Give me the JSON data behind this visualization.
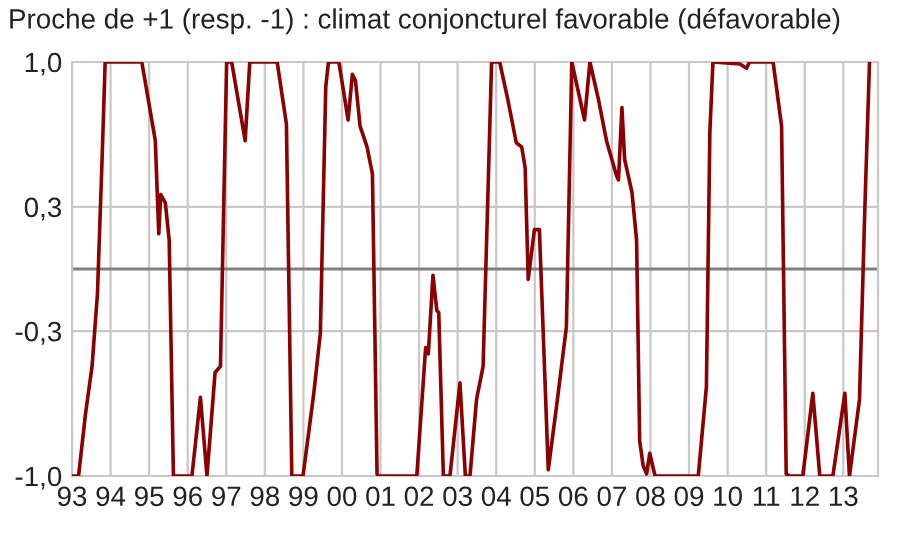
{
  "chart_data": {
    "type": "line",
    "title": "Proche de +1 (resp. -1) : climat conjoncturel favorable (défavorable)",
    "series": [
      {
        "color": "#8b0000",
        "x": [
          1993.0,
          1993.17,
          1993.35,
          1993.52,
          1993.66,
          1993.78,
          1993.86,
          1994.81,
          1995.16,
          1995.25,
          1995.3,
          1995.42,
          1995.52,
          1995.63,
          1996.11,
          1996.33,
          1996.5,
          1996.71,
          1996.85,
          1997.01,
          1997.14,
          1997.49,
          1997.61,
          1998.32,
          1998.56,
          1998.7,
          1998.99,
          1999.27,
          1999.44,
          1999.58,
          1999.65,
          1999.92,
          2000.16,
          2000.27,
          2000.35,
          2000.47,
          2000.65,
          2000.79,
          2000.91,
          2000.96,
          2001.94,
          2002.17,
          2002.24,
          2002.36,
          2002.46,
          2002.51,
          2002.63,
          2002.8,
          2003.06,
          2003.2,
          2003.32,
          2003.49,
          2003.66,
          2003.8,
          2003.88,
          2004.09,
          2004.3,
          2004.52,
          2004.66,
          2004.75,
          2004.83,
          2004.99,
          2005.12,
          2005.35,
          2005.56,
          2005.82,
          2005.96,
          2006.29,
          2006.43,
          2006.65,
          2006.86,
          2007.12,
          2007.17,
          2007.26,
          2007.33,
          2007.52,
          2007.64,
          2007.72,
          2007.81,
          2007.9,
          2007.98,
          2008.12,
          2009.24,
          2009.45,
          2009.54,
          2009.62,
          2010.32,
          2010.49,
          2010.57,
          2011.18,
          2011.4,
          2011.52,
          2011.61,
          2011.95,
          2012.21,
          2012.39,
          2012.73,
          2013.04,
          2013.16,
          2013.42,
          2013.56,
          2013.68
        ],
        "values": [
          -1.0,
          -1.0,
          -0.7,
          -0.47,
          -0.12,
          0.53,
          1.0,
          1.0,
          0.62,
          0.17,
          0.36,
          0.32,
          0.14,
          -1.0,
          -1.0,
          -0.62,
          -1.0,
          -0.5,
          -0.47,
          1.0,
          1.0,
          0.62,
          1.0,
          1.0,
          0.7,
          -1.0,
          -1.0,
          -0.6,
          -0.31,
          0.88,
          1.0,
          1.0,
          0.72,
          0.94,
          0.91,
          0.69,
          0.59,
          0.46,
          -0.99,
          -1.0,
          -1.0,
          -0.38,
          -0.41,
          -0.03,
          -0.2,
          -0.21,
          -1.0,
          -1.0,
          -0.55,
          -1.0,
          -1.0,
          -0.63,
          -0.47,
          0.46,
          1.0,
          1.0,
          0.82,
          0.61,
          0.59,
          0.49,
          -0.05,
          0.19,
          0.19,
          -0.97,
          -0.67,
          -0.28,
          1.0,
          0.72,
          1.0,
          0.82,
          0.62,
          0.45,
          0.43,
          0.78,
          0.53,
          0.37,
          0.14,
          -0.83,
          -0.95,
          -0.99,
          -0.89,
          -1.0,
          -1.0,
          -0.57,
          0.66,
          1.0,
          0.99,
          0.97,
          1.0,
          1.0,
          0.69,
          -0.99,
          -1.0,
          -1.0,
          -0.6,
          -1.0,
          -1.0,
          -0.6,
          -1.0,
          -0.63,
          0.3,
          1.0
        ]
      }
    ],
    "xlim": [
      1993.0,
      2013.9
    ],
    "xticks": [
      {
        "value": 1993,
        "label": "93"
      },
      {
        "value": 1994,
        "label": "94"
      },
      {
        "value": 1995,
        "label": "95"
      },
      {
        "value": 1996,
        "label": "96"
      },
      {
        "value": 1997,
        "label": "97"
      },
      {
        "value": 1998,
        "label": "98"
      },
      {
        "value": 1999,
        "label": "99"
      },
      {
        "value": 2000,
        "label": "00"
      },
      {
        "value": 2001,
        "label": "01"
      },
      {
        "value": 2002,
        "label": "02"
      },
      {
        "value": 2003,
        "label": "03"
      },
      {
        "value": 2004,
        "label": "04"
      },
      {
        "value": 2005,
        "label": "05"
      },
      {
        "value": 2006,
        "label": "06"
      },
      {
        "value": 2007,
        "label": "07"
      },
      {
        "value": 2008,
        "label": "08"
      },
      {
        "value": 2009,
        "label": "09"
      },
      {
        "value": 2010,
        "label": "10"
      },
      {
        "value": 2011,
        "label": "11"
      },
      {
        "value": 2012,
        "label": "12"
      },
      {
        "value": 2013,
        "label": "13"
      }
    ],
    "ylim": [
      -1.0,
      1.0
    ],
    "yticks": [
      {
        "value": -1.0,
        "label": "-1,0"
      },
      {
        "value": -0.3,
        "label": "-0,3"
      },
      {
        "value": 0.3,
        "label": "0,3"
      },
      {
        "value": 1.0,
        "label": "1,0"
      }
    ],
    "ref_lines": [
      {
        "axis": "y",
        "value": 0,
        "color": "#808080"
      }
    ],
    "grid": true,
    "legend": false,
    "marker": "none",
    "line_style": "solid"
  }
}
